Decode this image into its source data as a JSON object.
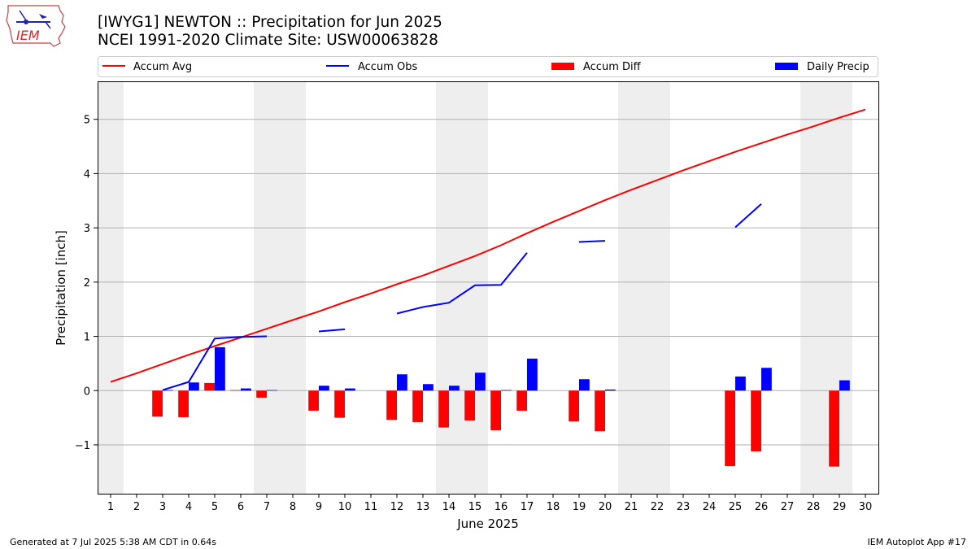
{
  "header": {
    "title": "[IWYG1] NEWTON :: Precipitation for Jun 2025",
    "subtitle": "NCEI 1991-2020 Climate Site: USW00063828"
  },
  "logo": {
    "text": "IEM",
    "color": "#d62a2a"
  },
  "footer": {
    "generated": "Generated at 7 Jul 2025 5:38 AM CDT in 0.64s",
    "app": "IEM Autoplot App #17"
  },
  "chart_data": {
    "type": "bar",
    "title": "",
    "xlabel": "June 2025",
    "ylabel": "Precipitation [inch]",
    "xlim": [
      0.5,
      30.5
    ],
    "ylim": [
      -1.9,
      5.7
    ],
    "yticks": [
      -1,
      0,
      1,
      2,
      3,
      4,
      5
    ],
    "ytick_labels": [
      "−1",
      "0",
      "1",
      "2",
      "3",
      "4",
      "5"
    ],
    "x": [
      1,
      2,
      3,
      4,
      5,
      6,
      7,
      8,
      9,
      10,
      11,
      12,
      13,
      14,
      15,
      16,
      17,
      18,
      19,
      20,
      21,
      22,
      23,
      24,
      25,
      26,
      27,
      28,
      29,
      30
    ],
    "xtick_labels": [
      "1",
      "2",
      "3",
      "4",
      "5",
      "6",
      "7",
      "8",
      "9",
      "10",
      "11",
      "12",
      "13",
      "14",
      "15",
      "16",
      "17",
      "18",
      "19",
      "20",
      "21",
      "22",
      "23",
      "24",
      "25",
      "26",
      "27",
      "28",
      "29",
      "30"
    ],
    "weekend_bands": [
      [
        0.5,
        1.5
      ],
      [
        6.5,
        8.5
      ],
      [
        13.5,
        15.5
      ],
      [
        20.5,
        22.5
      ],
      [
        27.5,
        29.5
      ]
    ],
    "grid": "y",
    "legend_position": "top",
    "colors": {
      "avg": "#ff0000",
      "obs": "#0000ff",
      "diff": "#ff0000",
      "precip": "#0000ff",
      "band": "#eeeeee",
      "grid": "#b0b0b0"
    },
    "series": [
      {
        "name": "Accum Avg",
        "kind": "line",
        "values": [
          0.16,
          0.32,
          0.49,
          0.66,
          0.82,
          0.98,
          1.14,
          1.3,
          1.46,
          1.63,
          1.79,
          1.96,
          2.12,
          2.3,
          2.48,
          2.68,
          2.9,
          3.11,
          3.31,
          3.51,
          3.7,
          3.88,
          4.06,
          4.23,
          4.4,
          4.56,
          4.72,
          4.87,
          5.03,
          5.18
        ]
      },
      {
        "name": "Accum Obs",
        "kind": "line",
        "values": [
          null,
          null,
          0.01,
          0.16,
          0.96,
          0.99,
          1.0,
          null,
          1.09,
          1.13,
          null,
          1.42,
          1.54,
          1.62,
          1.94,
          1.95,
          2.54,
          null,
          2.74,
          2.76,
          null,
          null,
          null,
          null,
          3.01,
          3.44,
          null,
          null,
          null,
          null
        ]
      },
      {
        "name": "Accum Diff",
        "kind": "bar",
        "values": [
          null,
          null,
          -0.48,
          -0.49,
          0.14,
          0.01,
          -0.13,
          null,
          -0.37,
          -0.5,
          null,
          -0.54,
          -0.58,
          -0.68,
          -0.55,
          -0.73,
          -0.37,
          null,
          -0.57,
          -0.75,
          null,
          null,
          null,
          null,
          -1.39,
          -1.12,
          null,
          null,
          -1.4,
          null
        ]
      },
      {
        "name": "Daily Precip",
        "kind": "bar",
        "values": [
          null,
          null,
          0.01,
          0.15,
          0.8,
          0.04,
          0.01,
          null,
          0.09,
          0.04,
          null,
          0.3,
          0.12,
          0.09,
          0.33,
          0.01,
          0.59,
          null,
          0.21,
          0.02,
          null,
          null,
          null,
          null,
          0.26,
          0.42,
          null,
          null,
          0.19,
          null
        ]
      }
    ]
  }
}
